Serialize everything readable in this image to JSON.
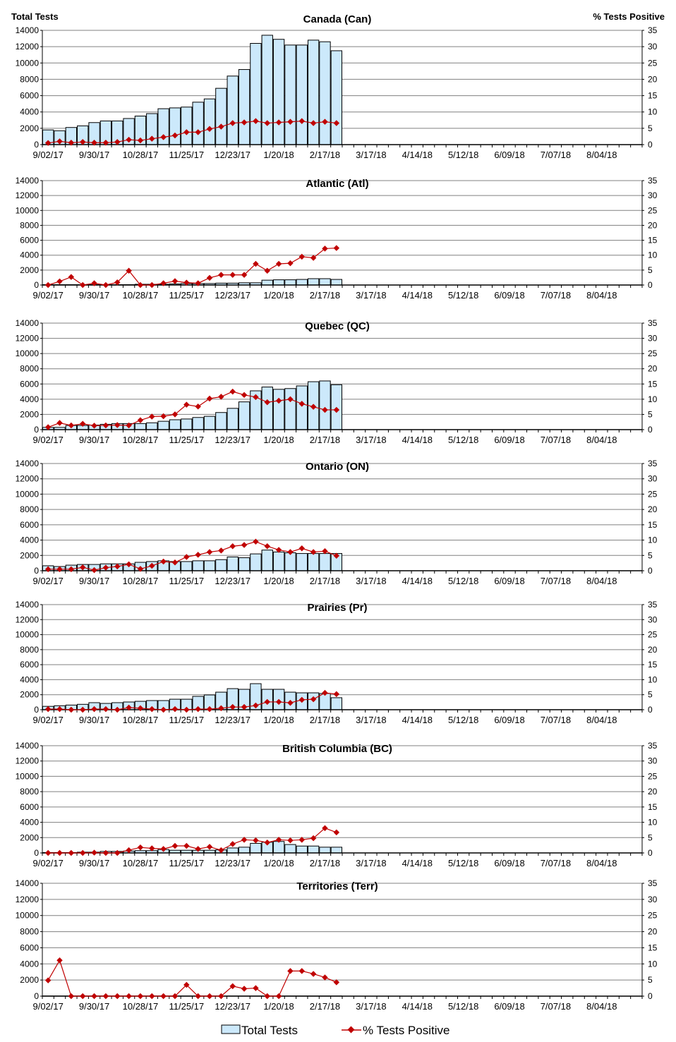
{
  "left_axis_label": "Total Tests",
  "right_axis_label": "% Tests Positive",
  "legend": {
    "bars": "Total Tests",
    "line": "% Tests Positive"
  },
  "colors": {
    "bar_fill": "#cce9fb",
    "bar_stroke": "#000000",
    "line": "#c00000",
    "grid": "#808080"
  },
  "chart_data": [
    {
      "type": "bar+line",
      "title": "Canada (Can)",
      "ylim": [
        0,
        14000
      ],
      "y2lim": [
        0,
        35
      ],
      "grid": true,
      "x_tick_labels": [
        "9/02/17",
        "9/30/17",
        "10/28/17",
        "11/25/17",
        "12/23/17",
        "1/20/18",
        "2/17/18",
        "3/17/18",
        "4/14/18",
        "5/12/18",
        "6/09/18",
        "7/07/18",
        "8/04/18"
      ],
      "y_ticks": [
        0,
        2000,
        4000,
        6000,
        8000,
        10000,
        12000,
        14000
      ],
      "y2_ticks": [
        0,
        5,
        10,
        15,
        20,
        25,
        30,
        35
      ],
      "total_tests": [
        1800,
        1700,
        2100,
        2300,
        2700,
        2900,
        2900,
        3200,
        3500,
        3800,
        4400,
        4500,
        4600,
        5200,
        5600,
        6900,
        8400,
        9200,
        12400,
        13400,
        12900,
        12200,
        12200,
        12800,
        12600,
        11500
      ],
      "pct_positive": [
        0.5,
        1.0,
        0.6,
        0.8,
        0.6,
        0.6,
        0.8,
        1.5,
        1.3,
        1.8,
        2.3,
        2.8,
        3.8,
        3.8,
        4.8,
        5.5,
        6.6,
        6.8,
        7.2,
        6.6,
        6.8,
        7.0,
        7.2,
        6.6,
        7.0,
        6.6
      ]
    },
    {
      "type": "bar+line",
      "title": "Atlantic (Atl)",
      "ylim": [
        0,
        14000
      ],
      "y2lim": [
        0,
        35
      ],
      "grid": true,
      "x_tick_labels": [
        "9/02/17",
        "9/30/17",
        "10/28/17",
        "11/25/17",
        "12/23/17",
        "1/20/18",
        "2/17/18",
        "3/17/18",
        "4/14/18",
        "5/12/18",
        "6/09/18",
        "7/07/18",
        "8/04/18"
      ],
      "y_ticks": [
        0,
        2000,
        4000,
        6000,
        8000,
        10000,
        12000,
        14000
      ],
      "y2_ticks": [
        0,
        5,
        10,
        15,
        20,
        25,
        30,
        35
      ],
      "total_tests": [
        50,
        50,
        50,
        50,
        50,
        50,
        50,
        50,
        100,
        100,
        100,
        150,
        200,
        200,
        200,
        250,
        250,
        300,
        300,
        650,
        700,
        700,
        750,
        850,
        850,
        750
      ],
      "pct_positive": [
        0,
        1.2,
        2.7,
        0,
        0.6,
        0,
        0.9,
        4.8,
        0,
        0,
        0.6,
        1.3,
        0.8,
        0.6,
        2.4,
        3.4,
        3.4,
        3.4,
        7.1,
        4.8,
        7.1,
        7.3,
        9.5,
        9.1,
        12.2,
        12.4
      ]
    },
    {
      "type": "bar+line",
      "title": "Quebec (QC)",
      "ylim": [
        0,
        14000
      ],
      "y2lim": [
        0,
        35
      ],
      "grid": true,
      "x_tick_labels": [
        "9/02/17",
        "9/30/17",
        "10/28/17",
        "11/25/17",
        "12/23/17",
        "1/20/18",
        "2/17/18",
        "3/17/18",
        "4/14/18",
        "5/12/18",
        "6/09/18",
        "7/07/18",
        "8/04/18"
      ],
      "y_ticks": [
        0,
        2000,
        4000,
        6000,
        8000,
        10000,
        12000,
        14000
      ],
      "y2_ticks": [
        0,
        5,
        10,
        15,
        20,
        25,
        30,
        35
      ],
      "total_tests": [
        300,
        300,
        550,
        550,
        600,
        700,
        800,
        800,
        800,
        900,
        1100,
        1300,
        1400,
        1600,
        1750,
        2250,
        2800,
        3650,
        5100,
        5600,
        5300,
        5400,
        5750,
        6300,
        6400,
        5900
      ],
      "pct_positive": [
        0.8,
        2.2,
        1.4,
        1.9,
        1.3,
        1.4,
        1.5,
        1.4,
        3.1,
        4.3,
        4.4,
        5.0,
        8.2,
        7.6,
        10.2,
        10.8,
        12.5,
        11.4,
        10.7,
        9.0,
        9.5,
        10.0,
        8.5,
        7.5,
        6.5,
        6.5
      ]
    },
    {
      "type": "bar+line",
      "title": "Ontario (ON)",
      "ylim": [
        0,
        14000
      ],
      "y2lim": [
        0,
        35
      ],
      "grid": true,
      "x_tick_labels": [
        "9/02/17",
        "9/30/17",
        "10/28/17",
        "11/25/17",
        "12/23/17",
        "1/20/18",
        "2/17/18",
        "3/17/18",
        "4/14/18",
        "5/12/18",
        "6/09/18",
        "7/07/18",
        "8/04/18"
      ],
      "y_ticks": [
        0,
        2000,
        4000,
        6000,
        8000,
        10000,
        12000,
        14000
      ],
      "y2_ticks": [
        0,
        5,
        10,
        15,
        20,
        25,
        30,
        35
      ],
      "total_tests": [
        650,
        550,
        730,
        820,
        820,
        900,
        900,
        900,
        1100,
        1200,
        1300,
        1200,
        1200,
        1300,
        1300,
        1450,
        1800,
        1700,
        2200,
        2700,
        2450,
        2350,
        2250,
        2250,
        2250,
        2250
      ],
      "pct_positive": [
        0.5,
        0.5,
        0.5,
        1.1,
        0.2,
        1.0,
        1.4,
        2.1,
        0.6,
        1.6,
        3.0,
        2.7,
        4.5,
        5.2,
        6.1,
        6.6,
        8.0,
        8.4,
        9.5,
        8.0,
        6.8,
        6.1,
        7.3,
        6.1,
        6.4,
        4.9
      ]
    },
    {
      "type": "bar+line",
      "title": "Prairies (Pr)",
      "ylim": [
        0,
        14000
      ],
      "y2lim": [
        0,
        35
      ],
      "grid": true,
      "x_tick_labels": [
        "9/02/17",
        "9/30/17",
        "10/28/17",
        "11/25/17",
        "12/23/17",
        "1/20/18",
        "2/17/18",
        "3/17/18",
        "4/14/18",
        "5/12/18",
        "6/09/18",
        "7/07/18",
        "8/04/18"
      ],
      "y_ticks": [
        0,
        2000,
        4000,
        6000,
        8000,
        10000,
        12000,
        14000
      ],
      "y2_ticks": [
        0,
        5,
        10,
        15,
        20,
        25,
        30,
        35
      ],
      "total_tests": [
        450,
        530,
        620,
        720,
        940,
        840,
        940,
        1030,
        1120,
        1220,
        1220,
        1400,
        1400,
        1780,
        1970,
        2340,
        2810,
        2720,
        3470,
        2720,
        2720,
        2340,
        2250,
        2250,
        2160,
        1600
      ],
      "pct_positive": [
        0.2,
        0.2,
        0,
        0,
        0.2,
        0.2,
        0,
        0.7,
        0.5,
        0.2,
        0,
        0.2,
        0,
        0.2,
        0.2,
        0.5,
        0.9,
        0.9,
        1.4,
        2.6,
        2.6,
        2.3,
        3.3,
        3.5,
        5.6,
        5.2
      ]
    },
    {
      "type": "bar+line",
      "title": "British Columbia (BC)",
      "ylim": [
        0,
        14000
      ],
      "y2lim": [
        0,
        35
      ],
      "grid": true,
      "x_tick_labels": [
        "9/02/17",
        "9/30/17",
        "10/28/17",
        "11/25/17",
        "12/23/17",
        "1/20/18",
        "2/17/18",
        "3/17/18",
        "4/14/18",
        "5/12/18",
        "6/09/18",
        "7/07/18",
        "8/04/18"
      ],
      "y_ticks": [
        0,
        2000,
        4000,
        6000,
        8000,
        10000,
        12000,
        14000
      ],
      "y2_ticks": [
        0,
        5,
        10,
        15,
        20,
        25,
        30,
        35
      ],
      "total_tests": [
        50,
        50,
        50,
        100,
        100,
        200,
        200,
        250,
        300,
        300,
        450,
        350,
        350,
        350,
        350,
        400,
        650,
        750,
        1250,
        1400,
        1500,
        1100,
        900,
        900,
        750,
        750
      ],
      "pct_positive": [
        0,
        0,
        0,
        0,
        0.1,
        0,
        0,
        0.9,
        1.8,
        1.5,
        1.3,
        2.3,
        2.3,
        1.3,
        2.0,
        0.9,
        2.9,
        4.3,
        4.1,
        3.4,
        4.3,
        4.1,
        4.3,
        4.8,
        8.1,
        6.7
      ]
    },
    {
      "type": "bar+line",
      "title": "Territories (Terr)",
      "ylim": [
        0,
        14000
      ],
      "y2lim": [
        0,
        35
      ],
      "grid": true,
      "x_tick_labels": [
        "9/02/17",
        "9/30/17",
        "10/28/17",
        "11/25/17",
        "12/23/17",
        "1/20/18",
        "2/17/18",
        "3/17/18",
        "4/14/18",
        "5/12/18",
        "6/09/18",
        "7/07/18",
        "8/04/18"
      ],
      "y_ticks": [
        0,
        2000,
        4000,
        6000,
        8000,
        10000,
        12000,
        14000
      ],
      "y2_ticks": [
        0,
        5,
        10,
        15,
        20,
        25,
        30,
        35
      ],
      "total_tests": [
        20,
        20,
        20,
        20,
        20,
        20,
        20,
        20,
        20,
        20,
        20,
        20,
        20,
        20,
        20,
        20,
        20,
        20,
        20,
        20,
        20,
        20,
        20,
        20,
        20,
        20
      ],
      "pct_positive": [
        4.9,
        11.1,
        0,
        0,
        0,
        0,
        0,
        0,
        0,
        0,
        0,
        0,
        3.5,
        0,
        0,
        0,
        3.1,
        2.3,
        2.5,
        0,
        0,
        7.8,
        7.8,
        6.9,
        5.8,
        4.3
      ]
    }
  ]
}
